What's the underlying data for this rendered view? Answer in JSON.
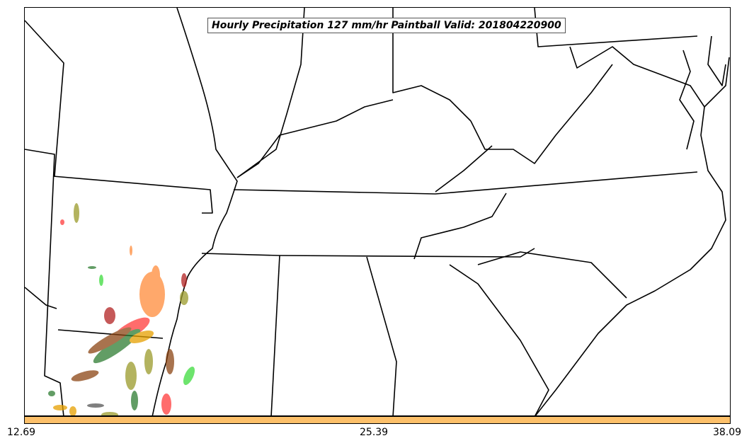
{
  "map": {
    "title": "Hourly Precipitation 127 mm/hr Paintball Valid: 201804220900",
    "colorbar": {
      "color": "#fdc06a",
      "ticks": [
        "12.69",
        "25.39",
        "38.09"
      ]
    },
    "paintball_colors": [
      "#ff8c3a",
      "#b22222",
      "#2e7d32",
      "#9a9a2a",
      "#ff3b3b",
      "#3ddc3d",
      "#8b4513",
      "#555555",
      "#e6a000"
    ]
  }
}
